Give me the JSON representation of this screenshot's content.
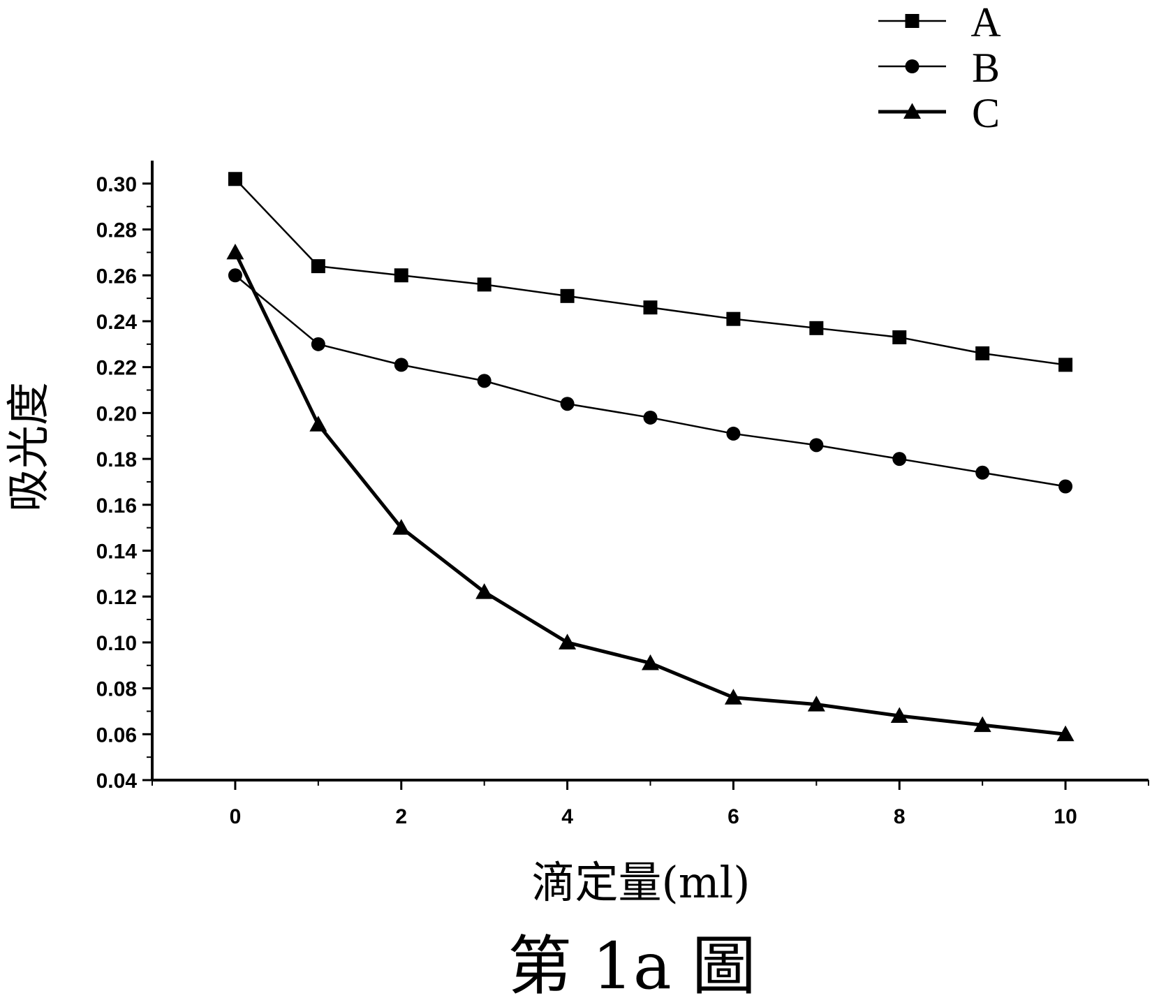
{
  "chart_data": {
    "type": "line",
    "xlabel": "滴定量(ml)",
    "ylabel": "吸光度",
    "caption": "第 1a 圖",
    "xlim": [
      -1,
      11
    ],
    "ylim": [
      0.04,
      0.31
    ],
    "x_ticks": [
      0,
      2,
      4,
      6,
      8,
      10
    ],
    "y_ticks": [
      0.04,
      0.06,
      0.08,
      0.1,
      0.12,
      0.14,
      0.16,
      0.18,
      0.2,
      0.22,
      0.24,
      0.26,
      0.28,
      0.3
    ],
    "x_tick_labels": [
      "0",
      "2",
      "4",
      "6",
      "8",
      "10"
    ],
    "y_tick_labels": [
      "0.04",
      "0.06",
      "0.08",
      "0.10",
      "0.12",
      "0.14",
      "0.16",
      "0.18",
      "0.20",
      "0.22",
      "0.24",
      "0.26",
      "0.28",
      "0.30"
    ],
    "legend_position": "top-right",
    "grid": false,
    "x": [
      0,
      1,
      2,
      3,
      4,
      5,
      6,
      7,
      8,
      9,
      10
    ],
    "series": [
      {
        "name": "A",
        "marker": "square",
        "line": "thin",
        "values": [
          0.302,
          0.264,
          0.26,
          0.256,
          0.251,
          0.246,
          0.241,
          0.237,
          0.233,
          0.226,
          0.221
        ]
      },
      {
        "name": "B",
        "marker": "circle",
        "line": "thin",
        "values": [
          0.26,
          0.23,
          0.221,
          0.214,
          0.204,
          0.198,
          0.191,
          0.186,
          0.18,
          0.174,
          0.168
        ]
      },
      {
        "name": "C",
        "marker": "triangle",
        "line": "thick",
        "values": [
          0.27,
          0.195,
          0.15,
          0.122,
          0.1,
          0.091,
          0.076,
          0.073,
          0.068,
          0.064,
          0.06
        ]
      }
    ]
  }
}
